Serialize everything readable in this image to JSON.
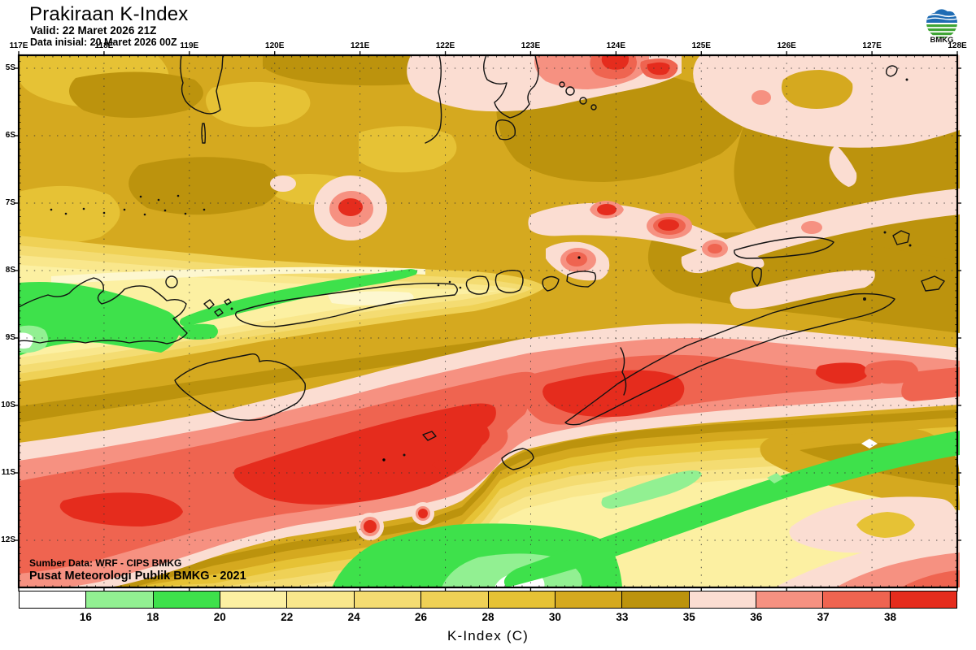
{
  "header": {
    "title": "Prakiraan K-Index",
    "valid": "Valid: 22 Maret 2026 21Z",
    "initial": "Data inisial: 20 Maret 2026 00Z",
    "logo_label": "BMKG"
  },
  "map": {
    "top_axis_labels": [
      "117E",
      "118E",
      "119E",
      "120E",
      "121E",
      "122E",
      "123E",
      "124E",
      "125E",
      "126E",
      "127E",
      "128E"
    ],
    "left_axis_labels": [
      "5S",
      "6S",
      "7S",
      "8S",
      "9S",
      "10S",
      "11S",
      "12S"
    ],
    "attribution_line1": "Sumber Data: WRF - CIPS BMKG",
    "attribution_line2": "Pusat Meteorologi Publik BMKG - 2021"
  },
  "legend": {
    "title": "K-Index (C)",
    "tick_labels": [
      "16",
      "18",
      "20",
      "22",
      "24",
      "26",
      "28",
      "30",
      "33",
      "35",
      "36",
      "37",
      "38"
    ],
    "segment_colors": [
      "#FFFFFF",
      "#92F092",
      "#3EE14B",
      "#FCF0A2",
      "#F9E78C",
      "#F4DC72",
      "#EFD156",
      "#E6C235",
      "#D5A91F",
      "#BC930D",
      "#FBDDD2",
      "#F69181",
      "#EF6450",
      "#E52C1D"
    ],
    "extra_colors": {
      "cream": "#FDF7CF",
      "logo_blue": "#1F6CB4",
      "logo_green": "#3FA535"
    }
  }
}
